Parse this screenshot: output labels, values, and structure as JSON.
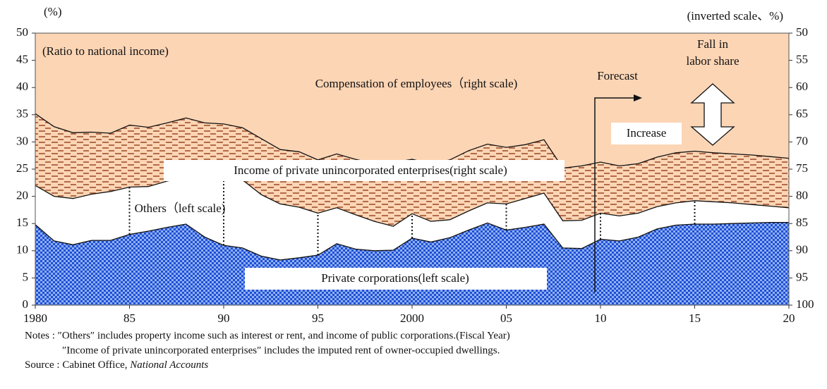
{
  "chart_data": {
    "type": "stacked-area",
    "y_label": "(%)",
    "y2_label": "(inverted scale、%)",
    "x": [
      1980,
      1981,
      1982,
      1983,
      1984,
      1985,
      1986,
      1987,
      1988,
      1989,
      1990,
      1991,
      1992,
      1993,
      1994,
      1995,
      1996,
      1997,
      1998,
      1999,
      2000,
      2001,
      2002,
      2003,
      2004,
      2005,
      2006,
      2007,
      2008,
      2009,
      2010,
      2011,
      2012,
      2013,
      2014,
      2015,
      2016,
      2017,
      2018,
      2019,
      2020
    ],
    "series": [
      {
        "name": "Private corporations(left scale)",
        "color": "#1f4fd6",
        "values": [
          14.8,
          11.8,
          11.1,
          11.9,
          11.9,
          13.0,
          13.6,
          14.3,
          14.9,
          12.5,
          11.0,
          10.5,
          9.0,
          8.3,
          8.7,
          9.2,
          11.3,
          10.3,
          10.0,
          10.1,
          12.3,
          11.6,
          12.4,
          13.8,
          15.1,
          13.8,
          14.3,
          14.9,
          10.5,
          10.4,
          12.1,
          11.8,
          12.5,
          14.0,
          14.7,
          14.9,
          14.9,
          15.0,
          15.1,
          15.2,
          15.2
        ]
      },
      {
        "name": "Others（left scale)",
        "color": "#ffffff",
        "values": [
          7.2,
          8.2,
          8.5,
          8.5,
          9.0,
          8.7,
          8.2,
          8.5,
          8.6,
          10.8,
          12.0,
          12.5,
          11.3,
          10.3,
          9.3,
          7.7,
          6.6,
          6.3,
          5.4,
          4.4,
          4.5,
          3.8,
          3.3,
          3.5,
          3.7,
          4.8,
          5.3,
          5.7,
          5.0,
          5.2,
          4.8,
          4.6,
          4.4,
          4.1,
          4.1,
          4.3,
          4.1,
          3.8,
          3.4,
          3.0,
          2.7
        ]
      },
      {
        "name": "Income of private unincorporated enterprises(right scale)",
        "color": "#a0522d",
        "values": [
          13.2,
          12.8,
          12.1,
          11.4,
          10.7,
          11.4,
          10.9,
          10.7,
          10.9,
          10.2,
          10.3,
          9.6,
          10.3,
          10.0,
          10.2,
          9.8,
          9.9,
          10.2,
          10.6,
          11.7,
          10.0,
          10.6,
          11.0,
          11.1,
          10.8,
          10.4,
          9.9,
          9.8,
          9.7,
          10.0,
          9.4,
          9.2,
          9.1,
          9.1,
          9.2,
          9.1,
          9.0,
          9.0,
          9.1,
          9.1,
          9.1
        ]
      },
      {
        "name": "Compensation of employees（right scale)",
        "color": "#fcd5b5",
        "axis": "y2",
        "values": [
          64.8,
          67.2,
          68.3,
          68.2,
          68.4,
          66.9,
          67.3,
          66.5,
          65.6,
          66.5,
          66.7,
          67.4,
          69.4,
          71.4,
          71.8,
          73.3,
          72.2,
          73.2,
          74.0,
          73.8,
          73.2,
          74.0,
          73.3,
          71.6,
          70.4,
          71.0,
          70.5,
          69.6,
          74.8,
          74.4,
          73.7,
          74.4,
          74.0,
          72.8,
          72.0,
          71.7,
          72.0,
          72.2,
          72.4,
          72.7,
          73.0
        ]
      }
    ],
    "xlim": [
      1980,
      2020
    ],
    "xticks": [
      1980,
      {
        "value": 1985,
        "label": "85"
      },
      {
        "value": 1990,
        "label": "90"
      },
      {
        "value": 1995,
        "label": "95"
      },
      2000,
      {
        "value": 2005,
        "label": "05"
      },
      {
        "value": 2010,
        "label": "10"
      },
      {
        "value": 2015,
        "label": "15"
      },
      {
        "value": 2020,
        "label": "20"
      }
    ],
    "ylim": [
      0,
      50
    ],
    "yticks": [
      0,
      5,
      10,
      15,
      20,
      25,
      30,
      35,
      40,
      45,
      50
    ],
    "y2lim": [
      100,
      50
    ],
    "y2ticks": [
      50,
      55,
      60,
      65,
      70,
      75,
      80,
      85,
      90,
      95,
      100
    ],
    "annotations": {
      "ratio": "(Ratio to national income)",
      "forecast": "Forecast",
      "fall": [
        "Fall in",
        "labor share"
      ],
      "increase": "Increase"
    },
    "notes": [
      "Notes : ″Others″ includes property income such as interest or rent, and income of public corporations.(Fiscal Year)",
      "″Income of private unincorporated enterprises″ includes the imputed rent of owner-occupied dwellings."
    ],
    "source": {
      "prefix": "Source : Cabinet Office, ",
      "italic": "National Accounts"
    }
  }
}
